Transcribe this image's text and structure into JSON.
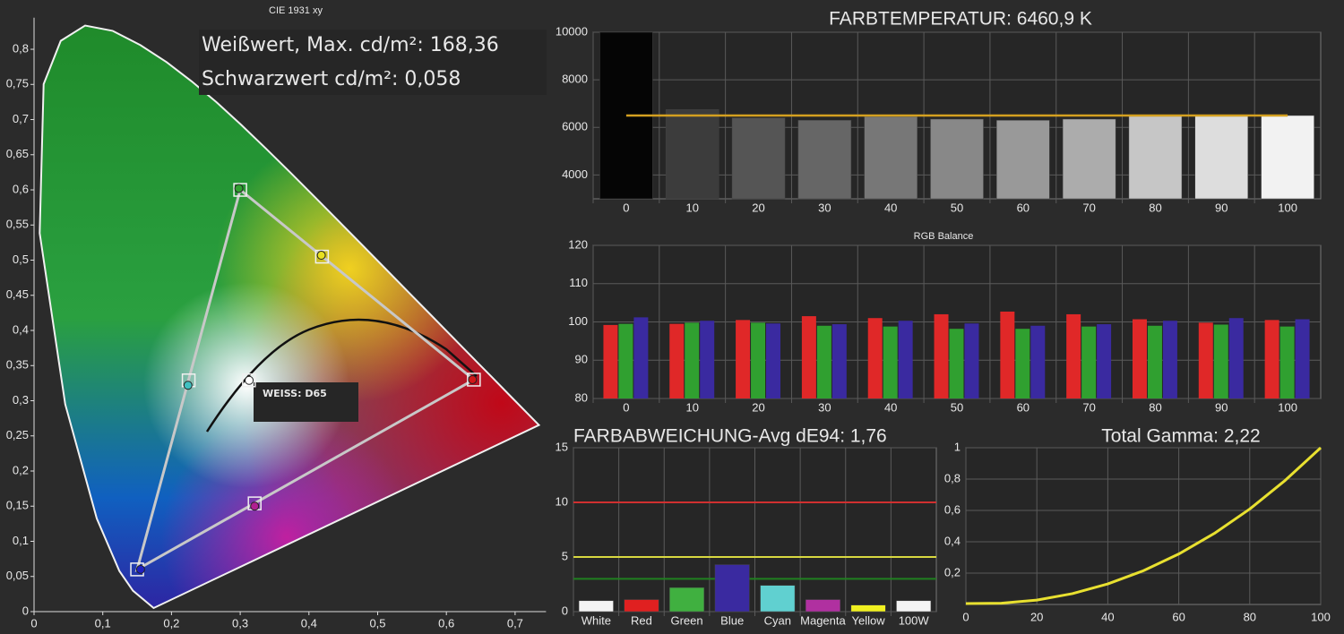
{
  "chart_data": [
    {
      "type": "scatter",
      "title": "CIE 1931 xy",
      "annotations": [
        "Weißwert, Max. cd/m²: 168,36",
        "Schwarzwert cd/m²: 0,058",
        "WEISS: D65"
      ],
      "xlim": [
        0,
        0.745
      ],
      "ylim": [
        0,
        0.845
      ],
      "xticks": [
        0,
        {
          "value": 0.1,
          "label": "0,1"
        },
        {
          "value": 0.2,
          "label": "0,2"
        },
        {
          "value": 0.3,
          "label": "0,3"
        },
        {
          "value": 0.4,
          "label": "0,4"
        },
        {
          "value": 0.5,
          "label": "0,5"
        },
        {
          "value": 0.6,
          "label": "0,6"
        },
        {
          "value": 0.7,
          "label": "0,7"
        }
      ],
      "yticks": [
        0,
        {
          "value": 0.05,
          "label": "0,05"
        },
        {
          "value": 0.1,
          "label": "0,1"
        },
        {
          "value": 0.15,
          "label": "0,15"
        },
        {
          "value": 0.2,
          "label": "0,2"
        },
        {
          "value": 0.25,
          "label": "0,25"
        },
        {
          "value": 0.3,
          "label": "0,3"
        },
        {
          "value": 0.35,
          "label": "0,35"
        },
        {
          "value": 0.4,
          "label": "0,4"
        },
        {
          "value": 0.45,
          "label": "0,45"
        },
        {
          "value": 0.5,
          "label": "0,5"
        },
        {
          "value": 0.55,
          "label": "0,55"
        },
        {
          "value": 0.6,
          "label": "0,6"
        },
        {
          "value": 0.65,
          "label": "0,65"
        },
        {
          "value": 0.7,
          "label": "0,7"
        },
        {
          "value": 0.75,
          "label": "0,75"
        },
        {
          "value": 0.8,
          "label": "0,8"
        }
      ],
      "grid": false,
      "series": [
        {
          "marker": "square",
          "color": "#f0f0f0",
          "x": [
            0.64,
            0.3,
            0.15,
            0.419,
            0.225,
            0.321,
            0.3127
          ],
          "values": [
            0.33,
            0.6,
            0.06,
            0.505,
            0.329,
            0.154,
            0.329
          ]
        },
        {
          "marker": "circle",
          "colors": [
            "#d01818",
            "#30a030",
            "#2020c0",
            "#e8e020",
            "#40c0c0",
            "#b02090",
            "#ffffff"
          ],
          "x": [
            0.638,
            0.298,
            0.155,
            0.418,
            0.224,
            0.321,
            0.313
          ],
          "values": [
            0.33,
            0.602,
            0.06,
            0.507,
            0.322,
            0.15,
            0.329
          ]
        }
      ]
    },
    {
      "type": "bar",
      "title": "FARBTEMPERATUR: 6460,9 K",
      "categories": [
        "0",
        "10",
        "20",
        "30",
        "40",
        "50",
        "60",
        "70",
        "80",
        "90",
        "100"
      ],
      "values": [
        10000,
        6750,
        6400,
        6300,
        6450,
        6350,
        6300,
        6350,
        6500,
        6500,
        6500
      ],
      "colors": [
        "#050505",
        "#3c3c3c",
        "#555555",
        "#666666",
        "#777777",
        "#888888",
        "#999999",
        "#acacac",
        "#c6c6c6",
        "#dddddd",
        "#f2f2f2"
      ],
      "reference": 6500,
      "reference_color": "#d4a020",
      "ylim": [
        3000,
        10000
      ],
      "yticks": [
        4000,
        6000,
        8000,
        10000
      ],
      "grid": true
    },
    {
      "type": "grouped-bar",
      "title": "RGB Balance",
      "categories": [
        "0",
        "10",
        "20",
        "30",
        "40",
        "50",
        "60",
        "70",
        "80",
        "90",
        "100"
      ],
      "series": [
        {
          "color": "#e02828",
          "values": [
            99.2,
            99.5,
            100.5,
            101.5,
            101,
            102,
            102.7,
            102,
            100.7,
            99.8,
            100.5
          ]
        },
        {
          "color": "#30a030",
          "values": [
            99.5,
            99.8,
            99.8,
            99,
            98.8,
            98.2,
            98.2,
            98.8,
            99,
            99.3,
            98.8
          ]
        },
        {
          "color": "#3a2aa0",
          "values": [
            101.2,
            100.3,
            99.6,
            99.4,
            100.3,
            99.6,
            99,
            99.4,
            100.3,
            101,
            100.7
          ]
        }
      ],
      "ylim": [
        80,
        120
      ],
      "yticks": [
        80,
        90,
        100,
        110,
        120
      ],
      "grid": true
    },
    {
      "type": "bar",
      "title": "FARBABWEICHUNG-Avg dE94: 1,76",
      "categories": [
        "White",
        "Red",
        "Green",
        "Blue",
        "Cyan",
        "Magenta",
        "Yellow",
        "100W"
      ],
      "values": [
        1.0,
        1.1,
        2.2,
        4.3,
        2.4,
        1.1,
        0.6,
        1.0
      ],
      "colors": [
        "#f4f4f4",
        "#e02020",
        "#40b040",
        "#3a2aa0",
        "#60d0d0",
        "#b030a0",
        "#f0f020",
        "#f4f4f4"
      ],
      "reference_lines": [
        {
          "value": 10,
          "color": "#d03030"
        },
        {
          "value": 5,
          "color": "#d8d840"
        },
        {
          "value": 3,
          "color": "#208020"
        }
      ],
      "ylim": [
        0,
        15
      ],
      "yticks": [
        0,
        5,
        10,
        15
      ],
      "grid": true
    },
    {
      "type": "line",
      "title": "Total Gamma: 2,22",
      "x": [
        0,
        10,
        20,
        30,
        40,
        50,
        60,
        70,
        80,
        90,
        100
      ],
      "values": [
        0.006,
        0.008,
        0.028,
        0.069,
        0.131,
        0.215,
        0.322,
        0.453,
        0.609,
        0.792,
        1
      ],
      "color": "#e8e030",
      "xlim": [
        0,
        100
      ],
      "ylim": [
        0,
        1
      ],
      "xticks": [
        0,
        20,
        40,
        60,
        80,
        100
      ],
      "yticks": [
        {
          "value": 0.2,
          "label": "0,2"
        },
        {
          "value": 0.4,
          "label": "0,4"
        },
        {
          "value": 0.6,
          "label": "0,6"
        },
        {
          "value": 0.8,
          "label": "0,8"
        },
        1
      ],
      "grid": true
    }
  ]
}
